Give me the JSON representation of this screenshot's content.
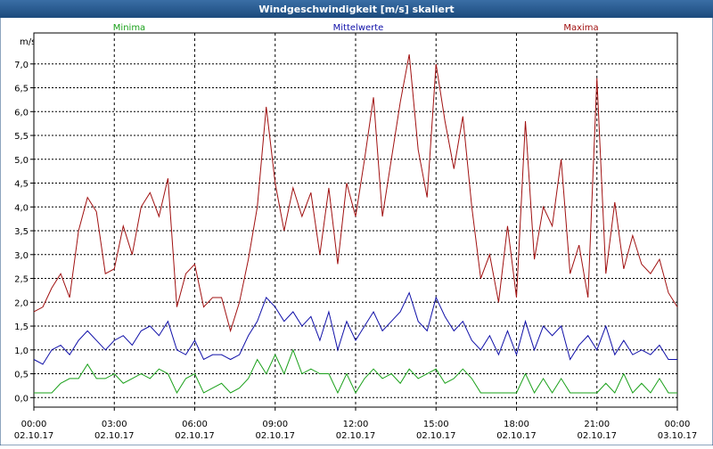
{
  "window_title": "Windgeschwindigkeit [m/s] skaliert",
  "chart_data": {
    "type": "line",
    "y_label": "m/s",
    "x": [
      0,
      20,
      40,
      60,
      80,
      100,
      120,
      140,
      160,
      180,
      200,
      220,
      240,
      260,
      280,
      300,
      320,
      340,
      360,
      380,
      400,
      420,
      440,
      460,
      480,
      500,
      520,
      540,
      560,
      580,
      600,
      620,
      640,
      660,
      680,
      700,
      720,
      740,
      760,
      780,
      800,
      820,
      840,
      860,
      880,
      900,
      920,
      940,
      960,
      980,
      1000,
      1020,
      1040,
      1060,
      1080,
      1100,
      1120,
      1140,
      1160,
      1180,
      1200,
      1220,
      1240,
      1260,
      1280,
      1300,
      1320,
      1340,
      1360,
      1380,
      1400,
      1420,
      1440
    ],
    "xlim": [
      0,
      1440
    ],
    "xticks": [
      {
        "value": 0,
        "label": "00:00\n02.10.17"
      },
      {
        "value": 180,
        "label": "03:00\n02.10.17"
      },
      {
        "value": 360,
        "label": "06:00\n02.10.17"
      },
      {
        "value": 540,
        "label": "09:00\n02.10.17"
      },
      {
        "value": 720,
        "label": "12:00\n02.10.17"
      },
      {
        "value": 900,
        "label": "15:00\n02.10.17"
      },
      {
        "value": 1080,
        "label": "18:00\n02.10.17"
      },
      {
        "value": 1260,
        "label": "21:00\n02.10.17"
      },
      {
        "value": 1440,
        "label": "00:00\n03.10.17"
      }
    ],
    "ylim": [
      -0.2,
      7.65
    ],
    "yticks": [
      {
        "value": 0,
        "label": "0,0"
      },
      {
        "value": 0.5,
        "label": "0,5"
      },
      {
        "value": 1,
        "label": "1,0"
      },
      {
        "value": 1.5,
        "label": "1,5"
      },
      {
        "value": 2,
        "label": "2,0"
      },
      {
        "value": 2.5,
        "label": "2,5"
      },
      {
        "value": 3,
        "label": "3,0"
      },
      {
        "value": 3.5,
        "label": "3,5"
      },
      {
        "value": 4,
        "label": "4,0"
      },
      {
        "value": 4.5,
        "label": "4,5"
      },
      {
        "value": 5,
        "label": "5,0"
      },
      {
        "value": 5.5,
        "label": "5,5"
      },
      {
        "value": 6,
        "label": "6,0"
      },
      {
        "value": 6.5,
        "label": "6,5"
      },
      {
        "value": 7,
        "label": "7,0"
      }
    ],
    "grid": true,
    "series": [
      {
        "name": "Minima",
        "color": "#1aa01a",
        "values": [
          0.1,
          0.1,
          0.1,
          0.3,
          0.4,
          0.4,
          0.7,
          0.4,
          0.4,
          0.5,
          0.3,
          0.4,
          0.5,
          0.4,
          0.6,
          0.5,
          0.1,
          0.4,
          0.5,
          0.1,
          0.2,
          0.3,
          0.1,
          0.2,
          0.4,
          0.8,
          0.5,
          0.9,
          0.5,
          1.0,
          0.5,
          0.6,
          0.5,
          0.5,
          0.1,
          0.5,
          0.1,
          0.4,
          0.6,
          0.4,
          0.5,
          0.3,
          0.6,
          0.4,
          0.5,
          0.6,
          0.3,
          0.4,
          0.6,
          0.4,
          0.1,
          0.1,
          0.1,
          0.1,
          0.1,
          0.5,
          0.1,
          0.4,
          0.1,
          0.4,
          0.1,
          0.1,
          0.1,
          0.1,
          0.3,
          0.1,
          0.5,
          0.1,
          0.3,
          0.1,
          0.4,
          0.1,
          0.1
        ]
      },
      {
        "name": "Mittelwerte",
        "color": "#1010a8",
        "values": [
          0.8,
          0.7,
          1.0,
          1.1,
          0.9,
          1.2,
          1.4,
          1.2,
          1.0,
          1.2,
          1.3,
          1.1,
          1.4,
          1.5,
          1.3,
          1.6,
          1.0,
          0.9,
          1.2,
          0.8,
          0.9,
          0.9,
          0.8,
          0.9,
          1.3,
          1.6,
          2.1,
          1.9,
          1.6,
          1.8,
          1.5,
          1.7,
          1.2,
          1.8,
          1.0,
          1.6,
          1.2,
          1.5,
          1.8,
          1.4,
          1.6,
          1.8,
          2.2,
          1.6,
          1.4,
          2.1,
          1.7,
          1.4,
          1.6,
          1.2,
          1.0,
          1.3,
          0.9,
          1.4,
          0.9,
          1.6,
          1.0,
          1.5,
          1.3,
          1.5,
          0.8,
          1.1,
          1.3,
          1.0,
          1.5,
          0.9,
          1.2,
          0.9,
          1.0,
          0.9,
          1.1,
          0.8,
          0.8
        ]
      },
      {
        "name": "Maxima",
        "color": "#a01010",
        "values": [
          1.8,
          1.9,
          2.3,
          2.6,
          2.1,
          3.5,
          4.2,
          3.9,
          2.6,
          2.7,
          3.6,
          3.0,
          4.0,
          4.3,
          3.8,
          4.6,
          1.9,
          2.6,
          2.8,
          1.9,
          2.1,
          2.1,
          1.4,
          2.0,
          2.9,
          4.0,
          6.1,
          4.5,
          3.5,
          4.4,
          3.8,
          4.3,
          3.0,
          4.4,
          2.8,
          4.5,
          3.8,
          5.0,
          6.3,
          3.8,
          5.0,
          6.2,
          7.2,
          5.2,
          4.2,
          7.0,
          5.8,
          4.8,
          5.9,
          4.0,
          2.5,
          3.0,
          2.0,
          3.6,
          2.1,
          5.8,
          2.9,
          4.0,
          3.6,
          5.0,
          2.6,
          3.2,
          2.1,
          6.7,
          2.6,
          4.1,
          2.7,
          3.4,
          2.8,
          2.6,
          2.9,
          2.2,
          1.9
        ]
      }
    ]
  }
}
